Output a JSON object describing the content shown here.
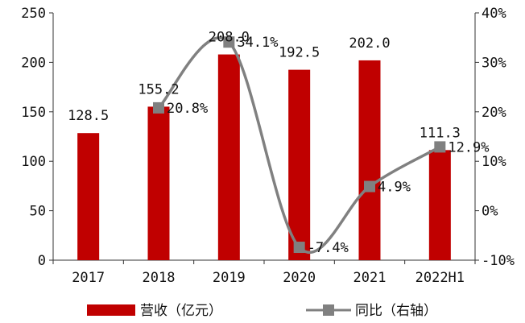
{
  "chart_data": {
    "type": "bar",
    "categories": [
      "2017",
      "2018",
      "2019",
      "2020",
      "2021",
      "2022H1"
    ],
    "series": [
      {
        "name": "营收（亿元）",
        "type": "bar",
        "axis": "left",
        "color": "#C00000",
        "values": [
          128.5,
          155.2,
          208.0,
          192.5,
          202.0,
          111.3
        ],
        "labels": [
          "128.5",
          "155.2",
          "208.0",
          "192.5",
          "202.0",
          "111.3"
        ]
      },
      {
        "name": "同比（右轴）",
        "type": "line",
        "axis": "right",
        "color": "#808080",
        "values": [
          null,
          20.8,
          34.1,
          -7.4,
          4.9,
          12.9
        ],
        "labels": [
          "",
          "20.8%",
          "34.1%",
          "-7.4%",
          "4.9%",
          "12.9%"
        ]
      }
    ],
    "left_axis": {
      "min": 0,
      "max": 250,
      "ticks": [
        "0",
        "50",
        "100",
        "150",
        "200",
        "250"
      ]
    },
    "right_axis": {
      "min": -10,
      "max": 40,
      "ticks": [
        "-10%",
        "0%",
        "10%",
        "20%",
        "30%",
        "40%"
      ]
    },
    "title": "",
    "xlabel": "",
    "ylabel": "",
    "legend_position": "bottom",
    "grid": false
  }
}
